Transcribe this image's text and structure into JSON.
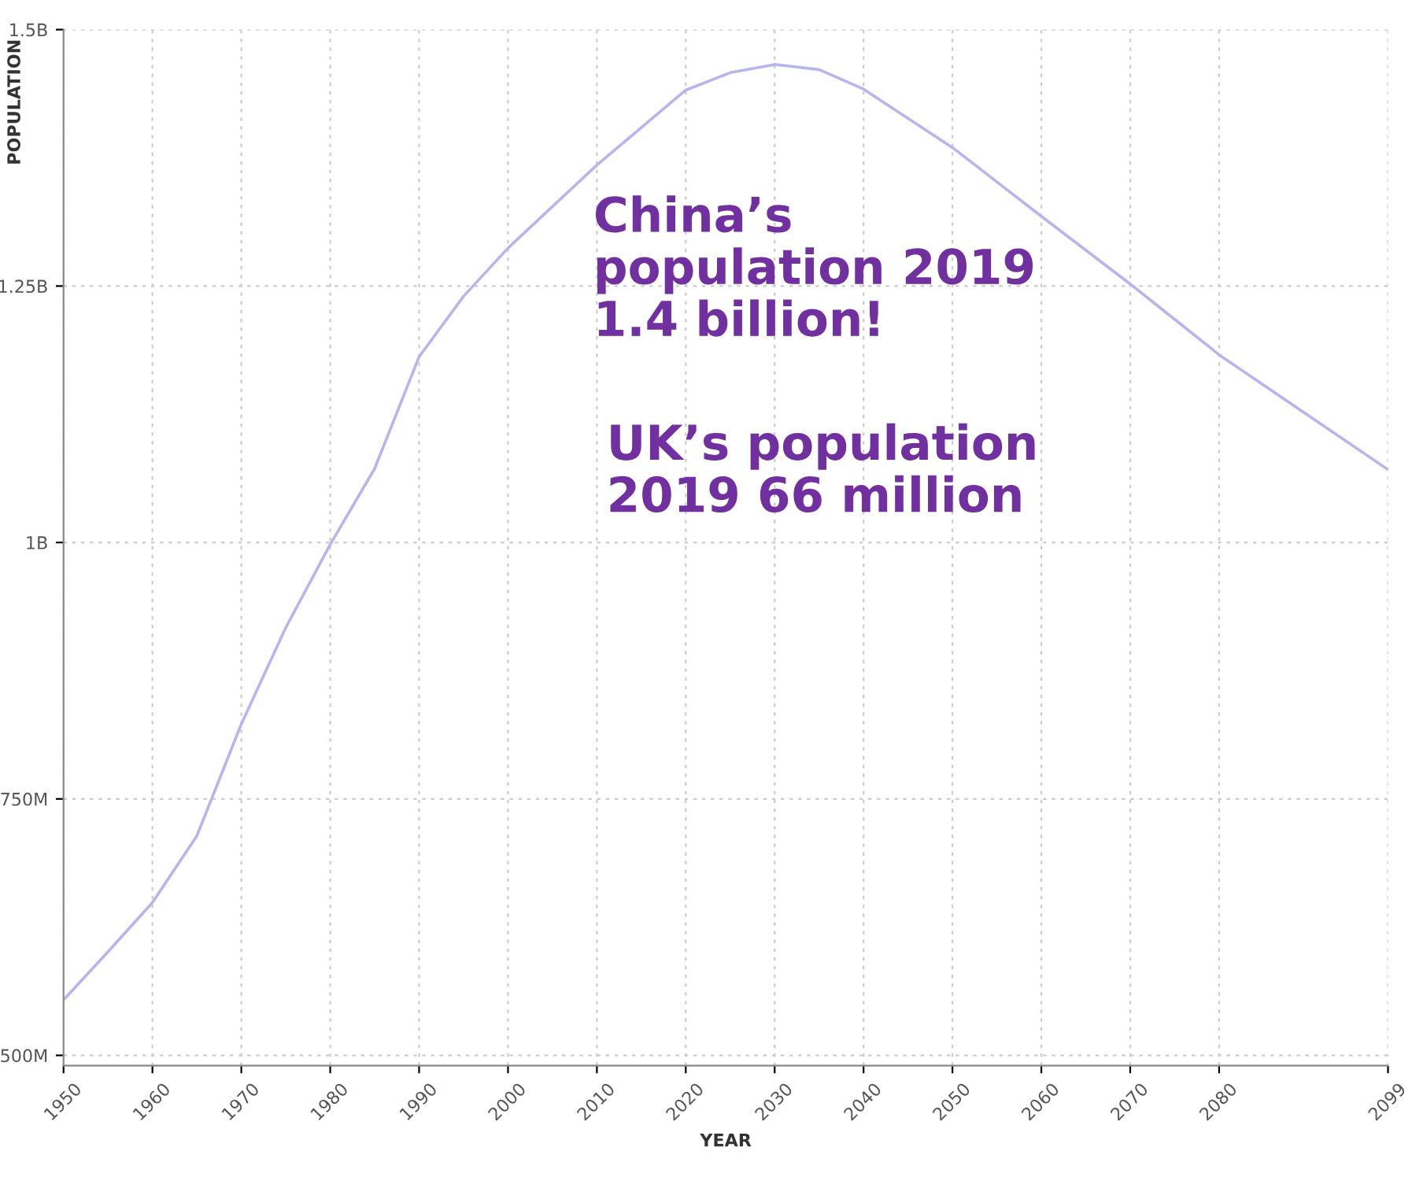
{
  "chart_data": {
    "type": "line",
    "xlabel": "YEAR",
    "ylabel": "POPULATION",
    "x": [
      1950,
      1955,
      1960,
      1965,
      1970,
      1975,
      1980,
      1985,
      1990,
      1995,
      2000,
      2010,
      2020,
      2025,
      2030,
      2035,
      2040,
      2050,
      2060,
      2070,
      2080,
      2090,
      2099
    ],
    "series": [
      {
        "color": "#b8b4ee",
        "values": [
          554000000,
          601000000,
          649000000,
          714000000,
          823000000,
          917000000,
          998000000,
          1072000000,
          1181000000,
          1240000000,
          1287000000,
          1368000000,
          1441000000,
          1458000000,
          1466000000,
          1461000000,
          1442000000,
          1385000000,
          1318000000,
          1252000000,
          1183000000,
          1124000000,
          1071000000
        ]
      }
    ],
    "xlim": [
      1950,
      2099
    ],
    "xticks": [
      1950,
      1960,
      1970,
      1980,
      1990,
      2000,
      2010,
      2020,
      2030,
      2040,
      2050,
      2060,
      2070,
      2080,
      2099
    ],
    "ylim": [
      490000000,
      1500000000
    ],
    "yticks": [
      {
        "value": 500000000,
        "label": "500M"
      },
      {
        "value": 750000000,
        "label": "750M"
      },
      {
        "value": 1000000000,
        "label": "1B"
      },
      {
        "value": 1250000000,
        "label": "1.25B"
      },
      {
        "value": 1500000000,
        "label": "1.5B"
      }
    ],
    "grid": true,
    "legend": false,
    "marker": "none",
    "line_style": "solid",
    "annotations": [
      "China’s\npopulation 2019\n1.4 billion!",
      "UK’s population\n2019 66 million"
    ]
  }
}
